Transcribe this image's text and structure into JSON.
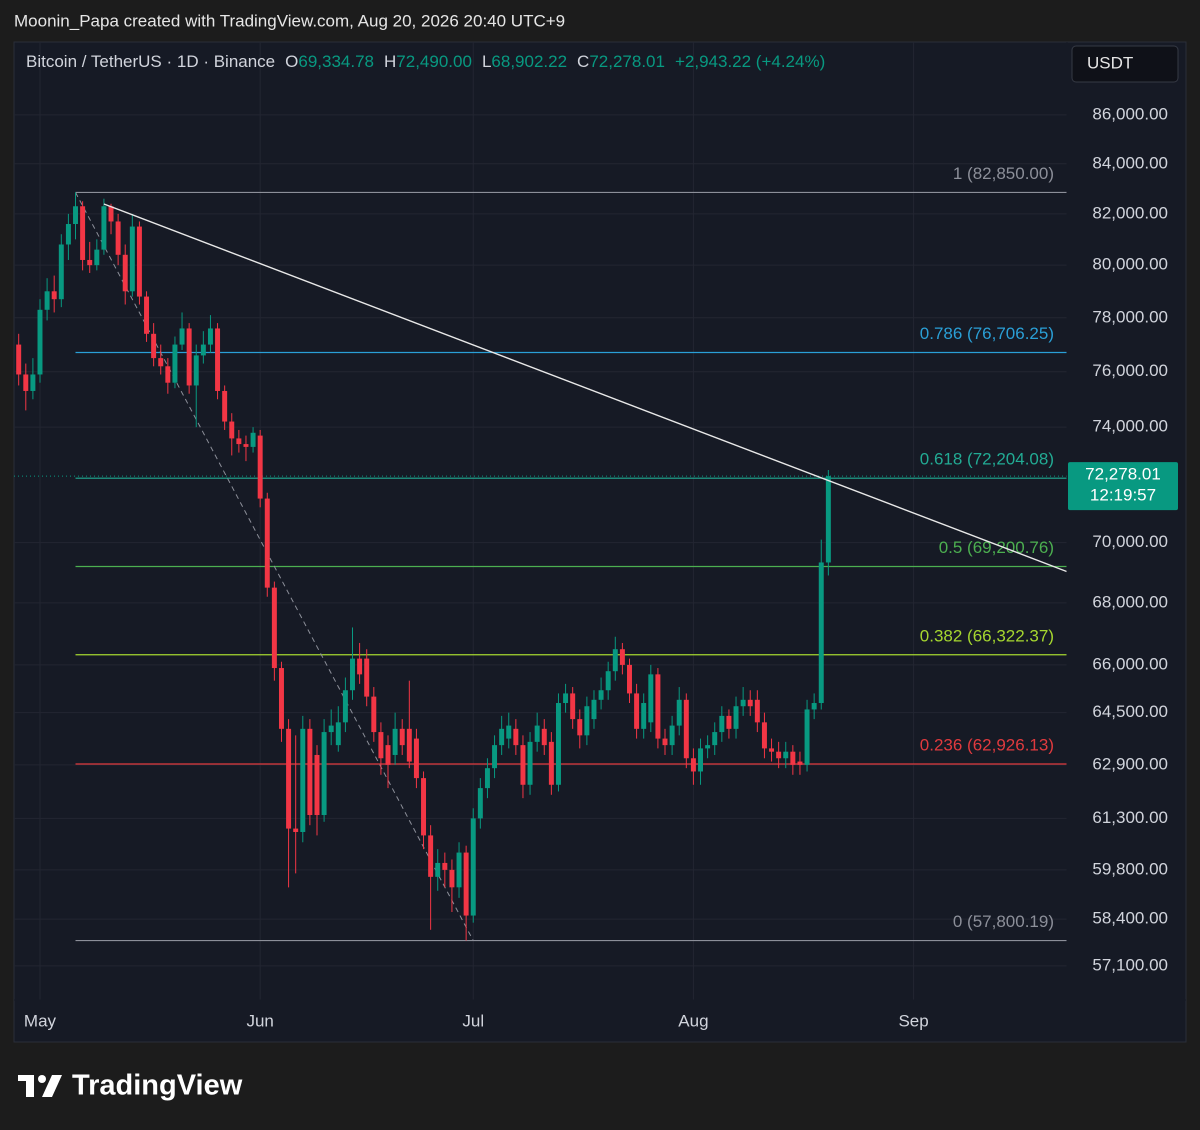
{
  "header": "Moonin_Papa created with TradingView.com, Aug 20, 2026 20:40 UTC+9",
  "footer": "TradingView",
  "chart_data": {
    "type": "candlestick",
    "symbol": "Bitcoin / TetherUS · 1D · Binance",
    "legend": {
      "o_label": "O",
      "o": "69,334.78",
      "h_label": "H",
      "h": "72,490.00",
      "l_label": "L",
      "l": "68,902.22",
      "c_label": "C",
      "c": "72,278.01",
      "change": "+2,943.22 (+4.24%)"
    },
    "currency": "USDT",
    "up_color": "#089981",
    "down_color": "#f23645",
    "log": true,
    "grid": true,
    "xlim": [
      -3.66,
      144.6
    ],
    "xticks": [
      {
        "value": 0,
        "label": "May"
      },
      {
        "value": 31,
        "label": "Jun"
      },
      {
        "value": 61,
        "label": "Jul"
      },
      {
        "value": 92,
        "label": "Aug"
      },
      {
        "value": 123,
        "label": "Sep"
      }
    ],
    "ylim": [
      56170,
      89070
    ],
    "yticks": [
      {
        "value": 86000,
        "label": "86,000.00"
      },
      {
        "value": 84000,
        "label": "84,000.00"
      },
      {
        "value": 82000,
        "label": "82,000.00"
      },
      {
        "value": 80000,
        "label": "80,000.00"
      },
      {
        "value": 78000,
        "label": "78,000.00"
      },
      {
        "value": 76000,
        "label": "76,000.00"
      },
      {
        "value": 74000,
        "label": "74,000.00"
      },
      {
        "value": 70000,
        "label": "70,000.00"
      },
      {
        "value": 68000,
        "label": "68,000.00"
      },
      {
        "value": 66000,
        "label": "66,000.00"
      },
      {
        "value": 64500,
        "label": "64,500.00"
      },
      {
        "value": 62900,
        "label": "62,900.00"
      },
      {
        "value": 61300,
        "label": "61,300.00"
      },
      {
        "value": 59800,
        "label": "59,800.00"
      },
      {
        "value": 58400,
        "label": "58,400.00"
      },
      {
        "value": 57100,
        "label": "57,100.00"
      }
    ],
    "x": [
      -3,
      -2,
      -1,
      0,
      1,
      2,
      3,
      4,
      5,
      6,
      7,
      8,
      9,
      10,
      11,
      12,
      13,
      14,
      15,
      16,
      17,
      18,
      19,
      20,
      21,
      22,
      23,
      24,
      25,
      26,
      27,
      28,
      29,
      30,
      31,
      32,
      33,
      34,
      35,
      36,
      37,
      38,
      39,
      40,
      41,
      42,
      43,
      44,
      45,
      46,
      47,
      48,
      49,
      50,
      51,
      52,
      53,
      54,
      55,
      56,
      57,
      58,
      59,
      60,
      61,
      62,
      63,
      64,
      65,
      66,
      67,
      68,
      69,
      70,
      71,
      72,
      73,
      74,
      75,
      76,
      77,
      78,
      79,
      80,
      81,
      82,
      83,
      84,
      85,
      86,
      87,
      88,
      89,
      90,
      91,
      92,
      93,
      94,
      95,
      96,
      97,
      98,
      99,
      100,
      101,
      102,
      103,
      104,
      105,
      106,
      107,
      108,
      109,
      110,
      111
    ],
    "open": [
      77000,
      75900,
      75300,
      75900,
      78300,
      79000,
      78700,
      80800,
      81600,
      82300,
      80200,
      80000,
      80600,
      82300,
      81700,
      80400,
      79000,
      81500,
      78800,
      77400,
      76500,
      76200,
      75600,
      77000,
      77600,
      75500,
      76600,
      77000,
      77600,
      75300,
      74200,
      73600,
      73400,
      73300,
      73700,
      71500,
      68500,
      65900,
      64000,
      61000,
      60900,
      64000,
      63200,
      61400,
      63900,
      63500,
      64200,
      65200,
      66200,
      66200,
      65000,
      63900,
      63500,
      63200,
      64000,
      64000,
      63700,
      62500,
      60800,
      59600,
      60000,
      59800,
      59300,
      60300,
      58500,
      61300,
      62200,
      62800,
      63500,
      63700,
      64000,
      63500,
      62300,
      63600,
      64000,
      63600,
      62300,
      64800,
      65100,
      64300,
      63800,
      64300,
      64900,
      65200,
      65800,
      66500,
      66000,
      65100,
      64000,
      64200,
      65700,
      63700,
      63500,
      64100,
      64900,
      63100,
      62700,
      63400,
      63500,
      63900,
      64400,
      64000,
      64700,
      64900,
      64900,
      64200,
      63400,
      63300,
      63100,
      63300,
      63000,
      62900,
      64600,
      64800,
      69334.78
    ],
    "high": [
      77400,
      76300,
      76500,
      78700,
      79500,
      79600,
      81200,
      82000,
      82850,
      82500,
      80900,
      81000,
      82600,
      82400,
      82000,
      80800,
      82000,
      81700,
      79000,
      77800,
      77000,
      76500,
      77300,
      78200,
      77800,
      77000,
      77500,
      78100,
      77800,
      75500,
      74500,
      73900,
      73700,
      74000,
      73900,
      71700,
      68700,
      66100,
      64300,
      63800,
      64400,
      64300,
      63500,
      64300,
      64600,
      64700,
      65600,
      67200,
      66700,
      66500,
      65300,
      64200,
      63800,
      64500,
      64300,
      65500,
      64000,
      62700,
      61100,
      60400,
      60300,
      60100,
      60600,
      60500,
      61600,
      62500,
      63100,
      63800,
      64400,
      64500,
      64300,
      63800,
      63900,
      64500,
      64300,
      63900,
      65100,
      65400,
      65300,
      64600,
      65000,
      65200,
      65600,
      66100,
      66900,
      66700,
      66200,
      65400,
      65100,
      66000,
      65900,
      64000,
      64400,
      65300,
      65100,
      63400,
      63700,
      63800,
      64200,
      64700,
      64600,
      65000,
      65300,
      65200,
      65200,
      64500,
      63700,
      63600,
      63600,
      63500,
      63300,
      64900,
      65100,
      70100,
      72490
    ],
    "low": [
      75500,
      74600,
      75000,
      75600,
      77900,
      78200,
      78400,
      80200,
      81000,
      79800,
      79700,
      79800,
      80400,
      81200,
      80000,
      78500,
      78800,
      78500,
      77100,
      76200,
      75900,
      75200,
      75400,
      76800,
      75200,
      74000,
      76300,
      76700,
      75000,
      73900,
      73000,
      73100,
      72800,
      73100,
      71200,
      68200,
      65500,
      63600,
      59300,
      59700,
      60600,
      61100,
      60800,
      61200,
      63500,
      63300,
      63900,
      64900,
      65400,
      64700,
      63600,
      62600,
      62200,
      62900,
      63200,
      62800,
      62200,
      60400,
      58100,
      59200,
      59300,
      58600,
      59000,
      57800,
      58300,
      61000,
      61900,
      62500,
      63200,
      63400,
      63200,
      61900,
      62000,
      63300,
      63200,
      62000,
      62100,
      64500,
      64000,
      63400,
      63500,
      64000,
      64600,
      64900,
      65500,
      65700,
      64800,
      63700,
      63700,
      63900,
      63400,
      63200,
      63200,
      63800,
      62800,
      62300,
      62300,
      63100,
      63200,
      63600,
      63700,
      63700,
      64400,
      64400,
      63900,
      63100,
      63000,
      62800,
      62800,
      62600,
      62600,
      62700,
      64300,
      64600,
      68902.22
    ],
    "close": [
      75900,
      75300,
      75900,
      78300,
      79000,
      78700,
      80800,
      81600,
      82300,
      80200,
      80000,
      80600,
      82300,
      81700,
      80400,
      79000,
      81500,
      78800,
      77400,
      76500,
      76200,
      75600,
      77000,
      77600,
      75500,
      76600,
      77000,
      77600,
      75300,
      74200,
      73600,
      73400,
      73300,
      73800,
      71500,
      68500,
      65900,
      64000,
      61000,
      60900,
      64000,
      61400,
      61400,
      63900,
      64100,
      64200,
      65200,
      66200,
      65700,
      65000,
      63900,
      63100,
      62900,
      64000,
      63500,
      63000,
      62500,
      60800,
      59600,
      60000,
      59800,
      59300,
      60300,
      58500,
      61300,
      62200,
      62800,
      63500,
      64000,
      64100,
      63500,
      62300,
      63600,
      64100,
      63500,
      62300,
      64800,
      65100,
      64300,
      63800,
      64700,
      64900,
      65200,
      65800,
      66500,
      66000,
      65100,
      64000,
      64800,
      65700,
      63700,
      63500,
      64100,
      64900,
      63100,
      62700,
      63400,
      63500,
      63900,
      64400,
      64000,
      64700,
      64900,
      64700,
      64200,
      63400,
      63300,
      63100,
      63300,
      62900,
      62900,
      64600,
      64800,
      69334.78,
      72278.01
    ],
    "fib": {
      "x": [
        5,
        144.6
      ],
      "levels": [
        {
          "label": "1 (82,850.00)",
          "value": 82850,
          "color": "#8c8f99"
        },
        {
          "label": "0.786 (76,706.25)",
          "value": 76706.25,
          "color": "#2a9fd6"
        },
        {
          "label": "0.618 (72,204.08)",
          "value": 72204.08,
          "color": "#22ab94"
        },
        {
          "label": "0.5 (69,200.76)",
          "value": 69200.76,
          "color": "#4caf50"
        },
        {
          "label": "0.382 (66,322.37)",
          "value": 66322.37,
          "color": "#a5d62f"
        },
        {
          "label": "0.236 (62,926.13)",
          "value": 62926.13,
          "color": "#e03a3e"
        },
        {
          "label": "0 (57,800.19)",
          "value": 57800.19,
          "color": "#8c8f99"
        }
      ]
    },
    "trendline": {
      "x": [
        9,
        144.6
      ],
      "y": [
        82390,
        69030
      ],
      "color": "#e8e8e8"
    },
    "anchor_line": {
      "x": [
        5,
        61
      ],
      "y": [
        82850,
        57800.19
      ],
      "color": "#8c8f99"
    },
    "last_price": {
      "value": 72278.01,
      "label": "72,278.01",
      "countdown": "12:19:57",
      "color": "#089981"
    }
  }
}
